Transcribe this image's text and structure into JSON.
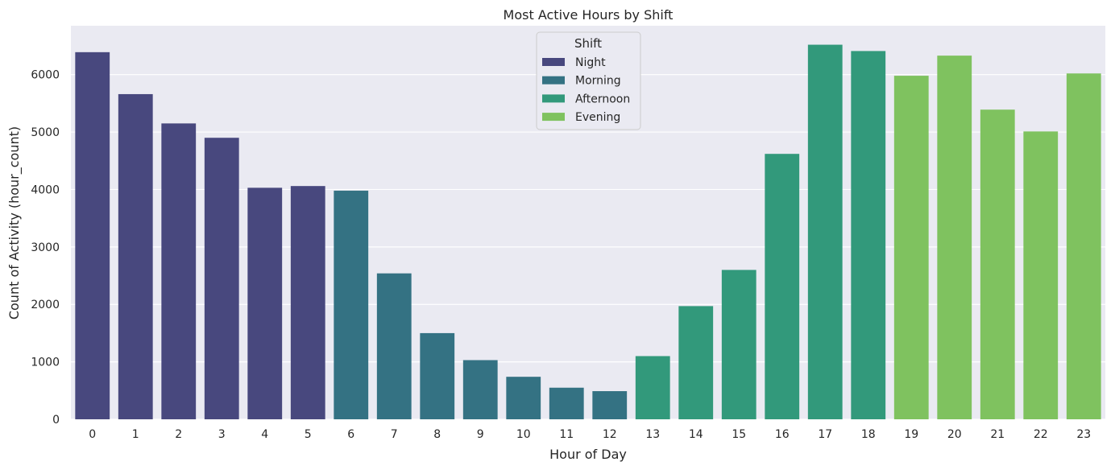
{
  "chart_data": {
    "type": "bar",
    "title": "Most Active Hours by Shift",
    "xlabel": "Hour of Day",
    "ylabel": "Count of Activity (hour_count)",
    "categories": [
      "0",
      "1",
      "2",
      "3",
      "4",
      "5",
      "6",
      "7",
      "8",
      "9",
      "10",
      "11",
      "12",
      "13",
      "14",
      "15",
      "16",
      "17",
      "18",
      "19",
      "20",
      "21",
      "22",
      "23"
    ],
    "values": [
      6390,
      5660,
      5150,
      4900,
      4030,
      4060,
      3980,
      2540,
      1500,
      1030,
      740,
      550,
      490,
      1100,
      1970,
      2600,
      4620,
      6520,
      6410,
      5980,
      6330,
      5390,
      5010,
      6020
    ],
    "shift": [
      "Night",
      "Night",
      "Night",
      "Night",
      "Night",
      "Night",
      "Morning",
      "Morning",
      "Morning",
      "Morning",
      "Morning",
      "Morning",
      "Morning",
      "Afternoon",
      "Afternoon",
      "Afternoon",
      "Afternoon",
      "Afternoon",
      "Afternoon",
      "Evening",
      "Evening",
      "Evening",
      "Evening",
      "Evening"
    ],
    "yticks": [
      0,
      1000,
      2000,
      3000,
      4000,
      5000,
      6000
    ],
    "ylim": [
      0,
      6850
    ],
    "grid": true,
    "legend": {
      "title": "Shift",
      "placement": "top-center",
      "entries": [
        {
          "name": "Night",
          "color": "#48487e"
        },
        {
          "name": "Morning",
          "color": "#347283"
        },
        {
          "name": "Afternoon",
          "color": "#32997b"
        },
        {
          "name": "Evening",
          "color": "#7fc25f"
        }
      ]
    },
    "colors": {
      "background": "#eaeaf2",
      "grid": "#ffffff"
    }
  }
}
